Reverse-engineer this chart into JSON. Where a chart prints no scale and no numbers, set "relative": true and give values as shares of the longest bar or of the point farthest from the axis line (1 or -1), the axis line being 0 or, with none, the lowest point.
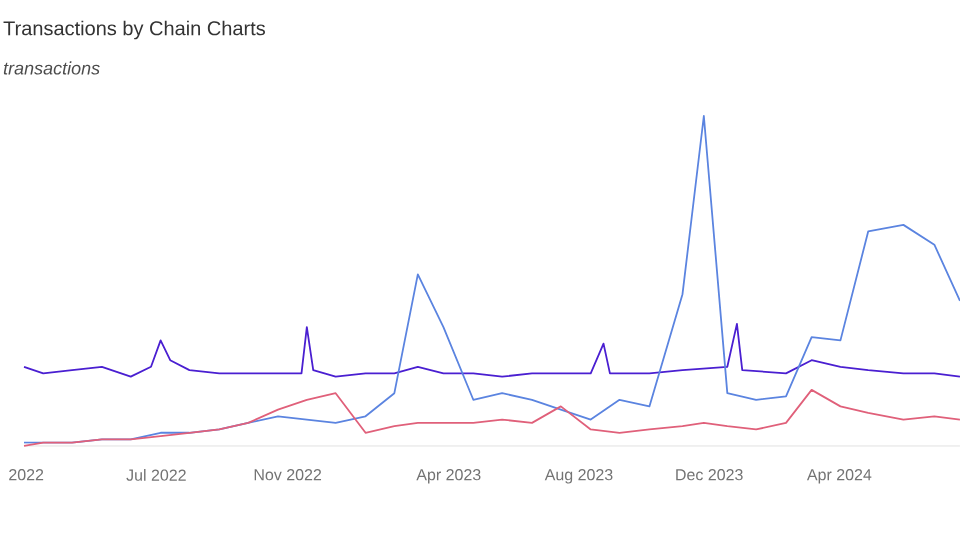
{
  "chart_data": {
    "type": "line",
    "title": "Transactions by Chain Charts",
    "ylabel": "transactions",
    "relative": true,
    "xlim": [
      "2022-02-27",
      "2024-07-23"
    ],
    "xticks": [
      {
        "value": "2022-03-01",
        "label": "2022"
      },
      {
        "value": "2022-07-01",
        "label": "Jul 2022"
      },
      {
        "value": "2022-11-01",
        "label": "Nov 2022"
      },
      {
        "value": "2023-04-01",
        "label": "Apr 2023"
      },
      {
        "value": "2023-08-01",
        "label": "Aug 2023"
      },
      {
        "value": "2023-12-01",
        "label": "Dec 2023"
      },
      {
        "value": "2024-04-01",
        "label": "Apr 2024"
      }
    ],
    "series": [
      {
        "color": "#4a1fd1",
        "x": [
          "2022-02-27",
          "2022-03-17",
          "2022-04-13",
          "2022-05-11",
          "2022-06-07",
          "2022-06-26",
          "2022-07-05",
          "2022-07-14",
          "2022-08-01",
          "2022-08-29",
          "2022-09-25",
          "2022-10-23",
          "2022-11-14",
          "2022-11-19",
          "2022-11-25",
          "2022-12-16",
          "2023-01-13",
          "2023-02-09",
          "2023-03-03",
          "2023-03-27",
          "2023-04-24",
          "2023-05-21",
          "2023-06-18",
          "2023-07-15",
          "2023-08-12",
          "2023-08-24",
          "2023-08-30",
          "2023-10-06",
          "2023-11-06",
          "2023-12-18",
          "2023-12-27",
          "2024-01-01",
          "2024-02-11",
          "2024-03-06",
          "2024-04-02",
          "2024-04-28",
          "2024-05-31",
          "2024-06-29",
          "2024-07-23"
        ],
        "values": [
          0.24,
          0.22,
          0.23,
          0.24,
          0.21,
          0.24,
          0.32,
          0.26,
          0.23,
          0.22,
          0.22,
          0.22,
          0.22,
          0.36,
          0.23,
          0.21,
          0.22,
          0.22,
          0.24,
          0.22,
          0.22,
          0.21,
          0.22,
          0.22,
          0.22,
          0.31,
          0.22,
          0.22,
          0.23,
          0.24,
          0.37,
          0.23,
          0.22,
          0.26,
          0.24,
          0.23,
          0.22,
          0.22,
          0.21
        ]
      },
      {
        "color": "#5b84e0",
        "x": [
          "2022-02-27",
          "2022-03-17",
          "2022-04-13",
          "2022-05-11",
          "2022-06-07",
          "2022-07-05",
          "2022-08-01",
          "2022-08-29",
          "2022-09-25",
          "2022-10-23",
          "2022-11-19",
          "2022-12-16",
          "2023-01-13",
          "2023-02-09",
          "2023-03-03",
          "2023-03-27",
          "2023-04-24",
          "2023-05-21",
          "2023-06-18",
          "2023-07-15",
          "2023-08-12",
          "2023-09-08",
          "2023-10-06",
          "2023-11-06",
          "2023-11-26",
          "2023-12-18",
          "2024-01-14",
          "2024-02-11",
          "2024-03-06",
          "2024-04-02",
          "2024-04-28",
          "2024-05-31",
          "2024-06-29",
          "2024-07-23"
        ],
        "values": [
          0.01,
          0.01,
          0.01,
          0.02,
          0.02,
          0.04,
          0.04,
          0.05,
          0.07,
          0.09,
          0.08,
          0.07,
          0.09,
          0.16,
          0.52,
          0.36,
          0.14,
          0.16,
          0.14,
          0.11,
          0.08,
          0.14,
          0.12,
          0.46,
          1,
          0.16,
          0.14,
          0.15,
          0.33,
          0.32,
          0.65,
          0.67,
          0.61,
          0.44
        ]
      },
      {
        "color": "#e0607a",
        "x": [
          "2022-02-27",
          "2022-03-17",
          "2022-04-13",
          "2022-05-11",
          "2022-06-07",
          "2022-07-05",
          "2022-08-01",
          "2022-08-29",
          "2022-09-25",
          "2022-10-23",
          "2022-11-19",
          "2022-12-16",
          "2023-01-13",
          "2023-02-09",
          "2023-03-03",
          "2023-03-27",
          "2023-04-24",
          "2023-05-21",
          "2023-06-18",
          "2023-07-15",
          "2023-08-12",
          "2023-09-08",
          "2023-10-06",
          "2023-11-06",
          "2023-11-26",
          "2023-12-18",
          "2024-01-14",
          "2024-02-11",
          "2024-03-06",
          "2024-04-02",
          "2024-04-28",
          "2024-05-31",
          "2024-06-29",
          "2024-07-23"
        ],
        "values": [
          0,
          0.01,
          0.01,
          0.02,
          0.02,
          0.03,
          0.04,
          0.05,
          0.07,
          0.11,
          0.14,
          0.16,
          0.04,
          0.06,
          0.07,
          0.07,
          0.07,
          0.08,
          0.07,
          0.12,
          0.05,
          0.04,
          0.05,
          0.06,
          0.07,
          0.06,
          0.05,
          0.07,
          0.17,
          0.12,
          0.1,
          0.08,
          0.09,
          0.08
        ]
      }
    ]
  }
}
